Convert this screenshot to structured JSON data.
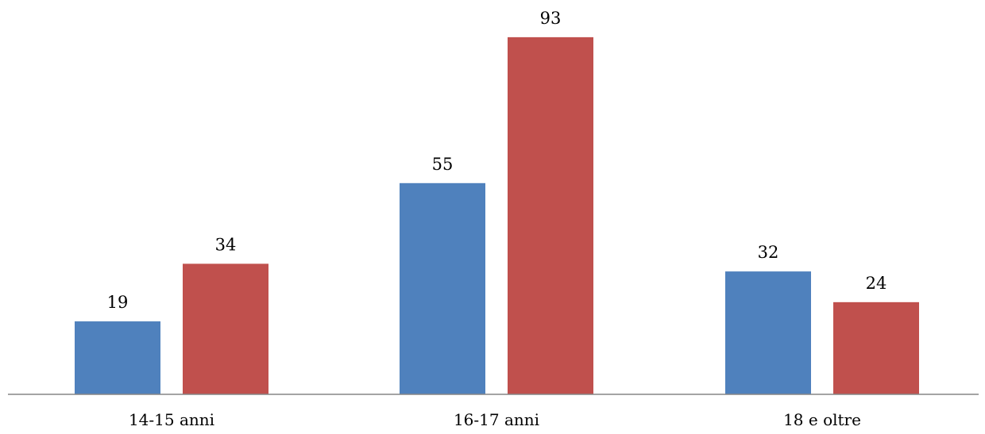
{
  "chart_data": {
    "type": "bar",
    "categories": [
      "14-15 anni",
      "16-17 anni",
      "18 e oltre"
    ],
    "series": [
      {
        "values": [
          19,
          55,
          32
        ],
        "color": "#4F81BD"
      },
      {
        "values": [
          34,
          93,
          24
        ],
        "color": "#C0504D"
      }
    ],
    "ylim": [
      0,
      95
    ],
    "grid": false,
    "legend": "none",
    "title": "",
    "xlabel": "",
    "ylabel": ""
  }
}
